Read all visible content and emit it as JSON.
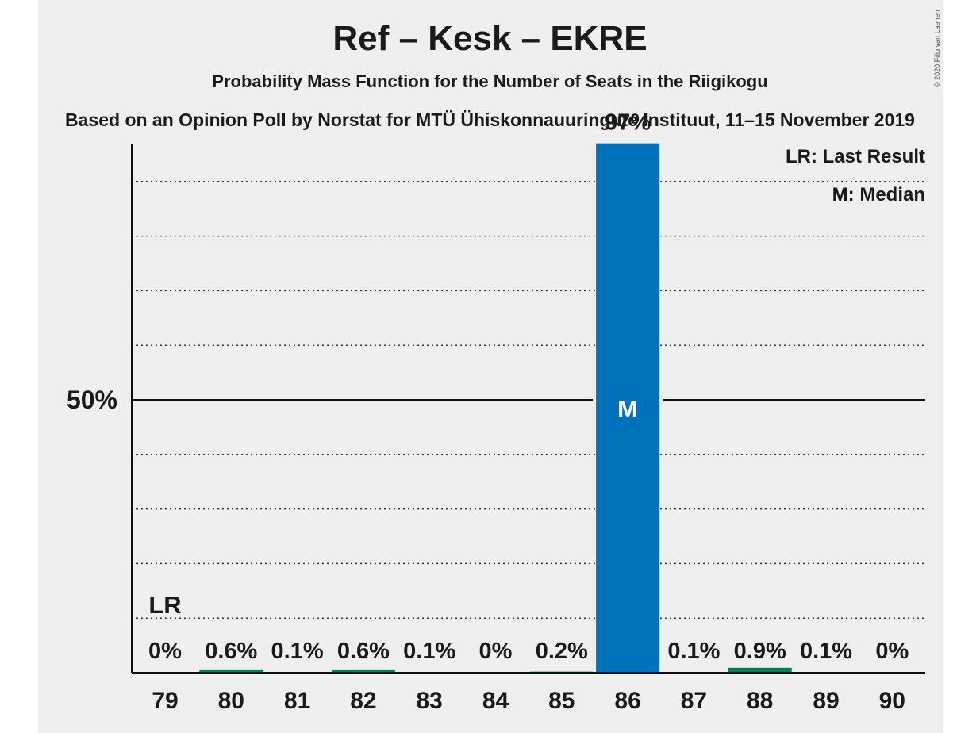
{
  "chart_data": {
    "type": "bar",
    "title": "Ref – Kesk – EKRE",
    "subtitle": "Probability Mass Function for the Number of Seats in the Riigikogu",
    "source": "Based on an Opinion Poll by Norstat for MTÜ Ühiskonnauuringute Instituut, 11–15 November 2019",
    "copyright": "© 2020 Filip van Laenen",
    "categories": [
      "79",
      "80",
      "81",
      "82",
      "83",
      "84",
      "85",
      "86",
      "87",
      "88",
      "89",
      "90"
    ],
    "values": [
      0,
      0.6,
      0.1,
      0.6,
      0.1,
      0,
      0.2,
      97,
      0.1,
      0.9,
      0.1,
      0
    ],
    "value_labels": [
      "0%",
      "0.6%",
      "0.1%",
      "0.6%",
      "0.1%",
      "0%",
      "0.2%",
      "97%",
      "0.1%",
      "0.9%",
      "0.1%",
      "0%"
    ],
    "bar_colors": [
      "#0e7a54",
      "#0e7a54",
      "#0e7a54",
      "#0e7a54",
      "#0e7a54",
      "#0e7a54",
      "#0e7a54",
      "#0072bc",
      "#0e7a54",
      "#0e7a54",
      "#0e7a54",
      "#0e7a54"
    ],
    "ylim": [
      0,
      100
    ],
    "y_tick_label": "50%",
    "y_tick_value": 50,
    "gridlines": [
      10,
      20,
      30,
      40,
      60,
      70,
      80,
      90
    ],
    "last_result": {
      "category": "79",
      "label": "LR"
    },
    "median": {
      "category": "86",
      "label": "M"
    },
    "legend": {
      "last_result": "LR: Last Result",
      "median": "M: Median",
      "position": "top-right"
    }
  }
}
